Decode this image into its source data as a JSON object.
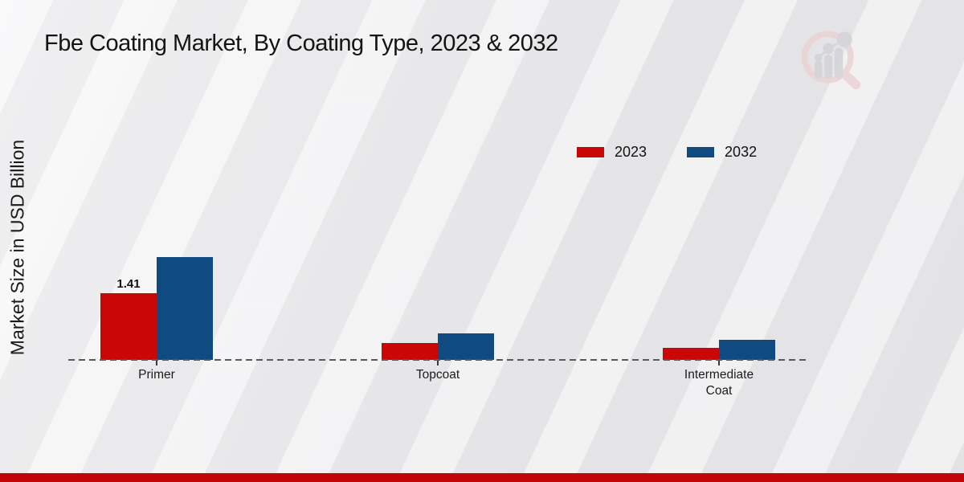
{
  "title": "Fbe Coating Market, By Coating Type, 2023 & 2032",
  "ylabel": "Market Size in USD Billion",
  "footer_bar_color": "#c20606",
  "icons": {
    "brand_logo": "magnifier-bar-chart-logo"
  },
  "chart_data": {
    "type": "bar",
    "categories": [
      "Primer",
      "Topcoat",
      "Intermediate Coat"
    ],
    "series": [
      {
        "name": "2023",
        "color": "#c90707",
        "values": [
          1.41,
          0.36,
          0.26
        ]
      },
      {
        "name": "2032",
        "color": "#0f4a80",
        "values": [
          2.18,
          0.56,
          0.43
        ]
      }
    ],
    "bar_labels": [
      {
        "series_index": 0,
        "category_index": 0,
        "text": "1.41"
      }
    ],
    "title": "Fbe Coating Market, By Coating Type, 2023 & 2032",
    "xlabel": "",
    "ylabel": "Market Size in USD Billion",
    "ylim": [
      0,
      2.5
    ],
    "grid": false,
    "baseline_style": "dashed",
    "legend_position": "upper-right",
    "legend_entries": [
      "2023",
      "2032"
    ]
  }
}
